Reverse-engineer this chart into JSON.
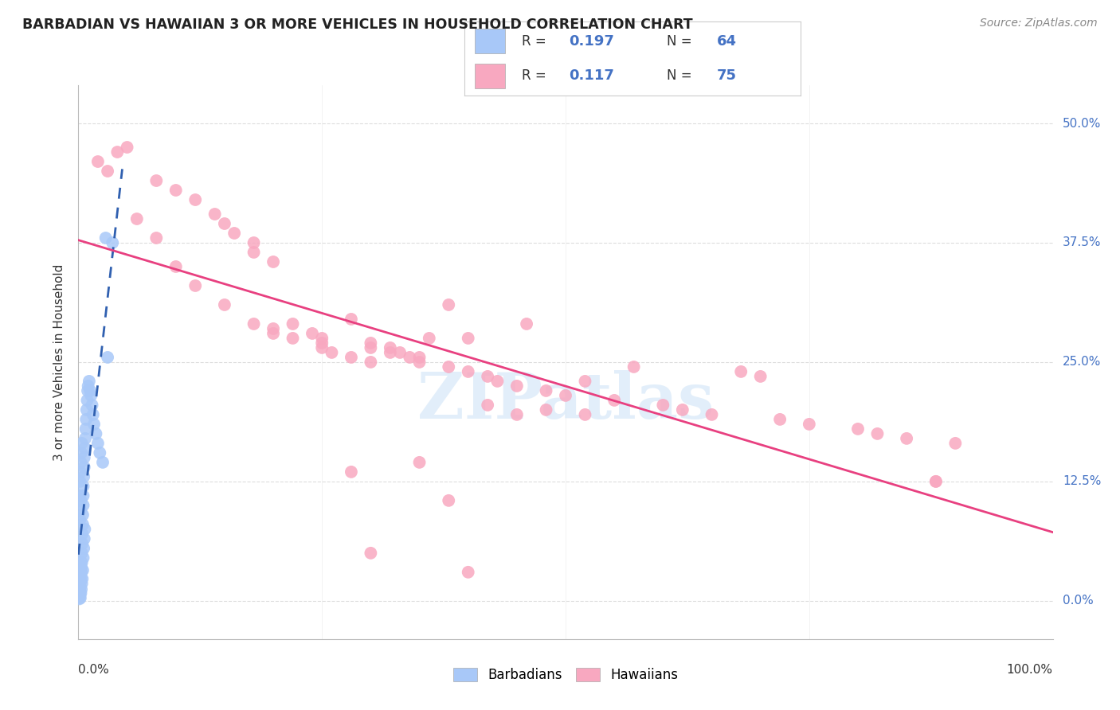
{
  "title": "BARBADIAN VS HAWAIIAN 3 OR MORE VEHICLES IN HOUSEHOLD CORRELATION CHART",
  "source": "Source: ZipAtlas.com",
  "ylabel": "3 or more Vehicles in Household",
  "ytick_values": [
    0.0,
    12.5,
    25.0,
    37.5,
    50.0
  ],
  "xrange": [
    0.0,
    100.0
  ],
  "yrange": [
    -4.0,
    54.0
  ],
  "barbadian_color": "#a8c8f8",
  "hawaiian_color": "#f8a8c0",
  "barbadian_line_color": "#3060b0",
  "hawaiian_line_color": "#e84080",
  "barbadian_R": 0.197,
  "barbadian_N": 64,
  "hawaiian_R": 0.117,
  "hawaiian_N": 75,
  "legend_label_barbadian": "Barbadians",
  "legend_label_hawaiian": "Hawaiians",
  "watermark": "ZIPatlas",
  "grid_color": "#dddddd",
  "right_tick_color": "#4472c4",
  "barb_x": [
    0.1,
    0.15,
    0.2,
    0.2,
    0.25,
    0.3,
    0.3,
    0.35,
    0.35,
    0.4,
    0.4,
    0.45,
    0.45,
    0.5,
    0.5,
    0.5,
    0.55,
    0.6,
    0.6,
    0.65,
    0.7,
    0.75,
    0.8,
    0.85,
    0.9,
    0.95,
    1.0,
    1.1,
    1.2,
    1.3,
    1.4,
    1.5,
    1.6,
    1.8,
    2.0,
    2.2,
    2.5,
    2.8,
    3.0,
    3.5,
    0.2,
    0.25,
    0.3,
    0.35,
    0.4,
    0.45,
    0.5,
    0.55,
    0.6,
    0.65,
    0.1,
    0.15,
    0.2,
    0.25,
    0.3,
    0.35,
    0.15,
    0.2,
    0.25,
    0.1,
    0.15,
    0.12,
    0.18,
    0.22
  ],
  "barb_y": [
    0.5,
    1.0,
    1.5,
    2.0,
    2.5,
    3.0,
    3.5,
    4.0,
    5.0,
    6.0,
    7.0,
    8.0,
    9.0,
    10.0,
    11.0,
    12.0,
    13.0,
    14.0,
    15.0,
    16.0,
    17.0,
    18.0,
    19.0,
    20.0,
    21.0,
    22.0,
    22.5,
    23.0,
    22.0,
    21.5,
    20.5,
    19.5,
    18.5,
    17.5,
    16.5,
    15.5,
    14.5,
    38.0,
    25.5,
    37.5,
    0.3,
    0.8,
    1.2,
    1.8,
    2.3,
    3.2,
    4.5,
    5.5,
    6.5,
    7.5,
    11.0,
    12.5,
    13.5,
    14.5,
    15.5,
    16.5,
    8.5,
    9.5,
    10.5,
    0.2,
    0.6,
    1.5,
    2.8,
    3.8
  ],
  "haw_x": [
    2.0,
    4.0,
    5.0,
    8.0,
    10.0,
    12.0,
    14.0,
    15.0,
    16.0,
    18.0,
    18.0,
    20.0,
    20.0,
    22.0,
    22.0,
    24.0,
    25.0,
    25.0,
    26.0,
    28.0,
    28.0,
    30.0,
    30.0,
    32.0,
    33.0,
    34.0,
    35.0,
    36.0,
    38.0,
    38.0,
    40.0,
    40.0,
    42.0,
    43.0,
    45.0,
    46.0,
    48.0,
    50.0,
    52.0,
    55.0,
    57.0,
    60.0,
    62.0,
    65.0,
    68.0,
    70.0,
    72.0,
    75.0,
    80.0,
    82.0,
    85.0,
    88.0,
    90.0,
    3.0,
    6.0,
    8.0,
    10.0,
    12.0,
    15.0,
    18.0,
    20.0,
    25.0,
    28.0,
    30.0,
    32.0,
    35.0,
    38.0,
    42.0,
    48.0,
    52.0,
    30.0,
    35.0,
    40.0,
    88.0,
    45.0
  ],
  "haw_y": [
    46.0,
    47.0,
    47.5,
    44.0,
    43.0,
    42.0,
    40.5,
    39.5,
    38.5,
    36.5,
    37.5,
    35.5,
    28.5,
    29.0,
    27.5,
    28.0,
    27.0,
    26.5,
    26.0,
    29.5,
    25.5,
    25.0,
    27.0,
    26.5,
    26.0,
    25.5,
    25.0,
    27.5,
    31.0,
    24.5,
    27.5,
    24.0,
    23.5,
    23.0,
    22.5,
    29.0,
    22.0,
    21.5,
    23.0,
    21.0,
    24.5,
    20.5,
    20.0,
    19.5,
    24.0,
    23.5,
    19.0,
    18.5,
    18.0,
    17.5,
    17.0,
    12.5,
    16.5,
    45.0,
    40.0,
    38.0,
    35.0,
    33.0,
    31.0,
    29.0,
    28.0,
    27.5,
    13.5,
    26.5,
    26.0,
    25.5,
    10.5,
    20.5,
    20.0,
    19.5,
    5.0,
    14.5,
    3.0,
    12.5,
    19.5
  ]
}
